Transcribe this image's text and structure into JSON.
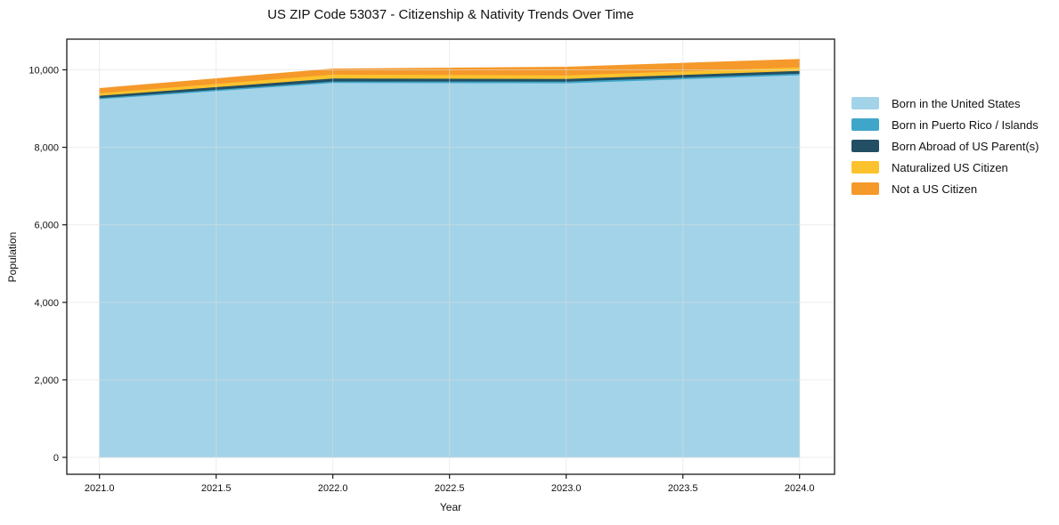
{
  "chart_data": {
    "type": "area",
    "stacked": true,
    "title": "US ZIP Code 53037 - Citizenship & Nativity Trends Over Time",
    "xlabel": "Year",
    "ylabel": "Population",
    "x": [
      2021,
      2022,
      2023,
      2024
    ],
    "series": [
      {
        "name": "Born in the United States",
        "color": "#a3d3e8",
        "values": [
          9250,
          9670,
          9660,
          9870
        ]
      },
      {
        "name": "Born in Puerto Rico / Islands",
        "color": "#40a6c9",
        "values": [
          30,
          38,
          45,
          40
        ]
      },
      {
        "name": "Born Abroad of US Parent(s)",
        "color": "#224f63",
        "values": [
          60,
          77,
          68,
          70
        ]
      },
      {
        "name": "Naturalized US Citizen",
        "color": "#fcc22d",
        "values": [
          65,
          100,
          92,
          95
        ]
      },
      {
        "name": "Not a US Citizen",
        "color": "#f5992b",
        "values": [
          115,
          138,
          205,
          195
        ]
      }
    ],
    "totals": [
      9520,
      10023,
      10070,
      10270
    ],
    "xlim": [
      2020.86,
      2024.15
    ],
    "ylim": [
      -436,
      10791
    ],
    "xticks": {
      "values": [
        2021.0,
        2021.5,
        2022.0,
        2022.5,
        2023.0,
        2023.5,
        2024.0
      ],
      "labels": [
        "2021.0",
        "2021.5",
        "2022.0",
        "2022.5",
        "2023.0",
        "2023.5",
        "2024.0"
      ]
    },
    "yticks": {
      "values": [
        0,
        2000,
        4000,
        6000,
        8000,
        10000
      ],
      "labels": [
        "0",
        "2,000",
        "4,000",
        "6,000",
        "8,000",
        "10,000"
      ]
    },
    "grid": true,
    "legend_position": "outside-right-top"
  }
}
